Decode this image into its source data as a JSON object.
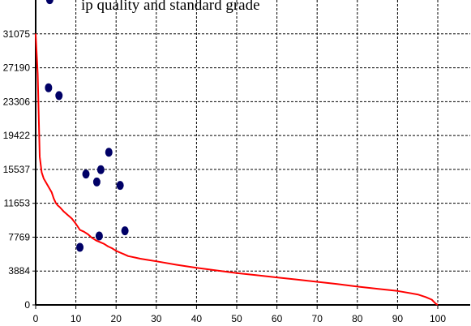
{
  "top_caption_fragment": "ip quality and standard grade",
  "chart_data": {
    "type": "line",
    "xlim": [
      0,
      100
    ],
    "ylim": [
      0,
      34960
    ],
    "x_ticks": [
      "0",
      "10",
      "20",
      "30",
      "40",
      "50",
      "60",
      "70",
      "80",
      "90",
      "100"
    ],
    "y_ticks": [
      "0",
      "3884",
      "7769",
      "11653",
      "15537",
      "19422",
      "23306",
      "27190",
      "31075"
    ],
    "grid": true,
    "colors": {
      "line": "#ff0000",
      "points": "#000066",
      "grid": "#000000",
      "axis": "#000000"
    },
    "series": [
      {
        "type": "line",
        "x": [
          0,
          0.5,
          1,
          1.5,
          2,
          3,
          4,
          4.5,
          5,
          5.5,
          6,
          7,
          8,
          9,
          10,
          11,
          12,
          13,
          14,
          15,
          16,
          17,
          18,
          19,
          20,
          21,
          22,
          23,
          24,
          25,
          26,
          28,
          30,
          35,
          40,
          45,
          50,
          55,
          60,
          65,
          70,
          75,
          80,
          85,
          90,
          95,
          97,
          98.5,
          99.5,
          100
        ],
        "y": [
          31100,
          26500,
          17000,
          15200,
          14500,
          13700,
          12900,
          12200,
          11700,
          11400,
          11200,
          10700,
          10300,
          9900,
          9300,
          8600,
          8400,
          8100,
          7700,
          7400,
          7200,
          7000,
          6700,
          6500,
          6200,
          6000,
          5800,
          5600,
          5500,
          5400,
          5300,
          5150,
          5000,
          4600,
          4250,
          3950,
          3650,
          3400,
          3150,
          2900,
          2650,
          2400,
          2100,
          1850,
          1600,
          1200,
          900,
          600,
          150,
          0
        ]
      },
      {
        "type": "scatter",
        "points": [
          {
            "x": 3.5,
            "y": 35000
          },
          {
            "x": 3.2,
            "y": 24900
          },
          {
            "x": 5.8,
            "y": 24000
          },
          {
            "x": 18.2,
            "y": 17500
          },
          {
            "x": 12.5,
            "y": 15000
          },
          {
            "x": 16.2,
            "y": 15500
          },
          {
            "x": 15.2,
            "y": 14100
          },
          {
            "x": 21.0,
            "y": 13700
          },
          {
            "x": 22.2,
            "y": 8500
          },
          {
            "x": 15.8,
            "y": 7900
          },
          {
            "x": 11.0,
            "y": 6600
          }
        ]
      }
    ]
  }
}
